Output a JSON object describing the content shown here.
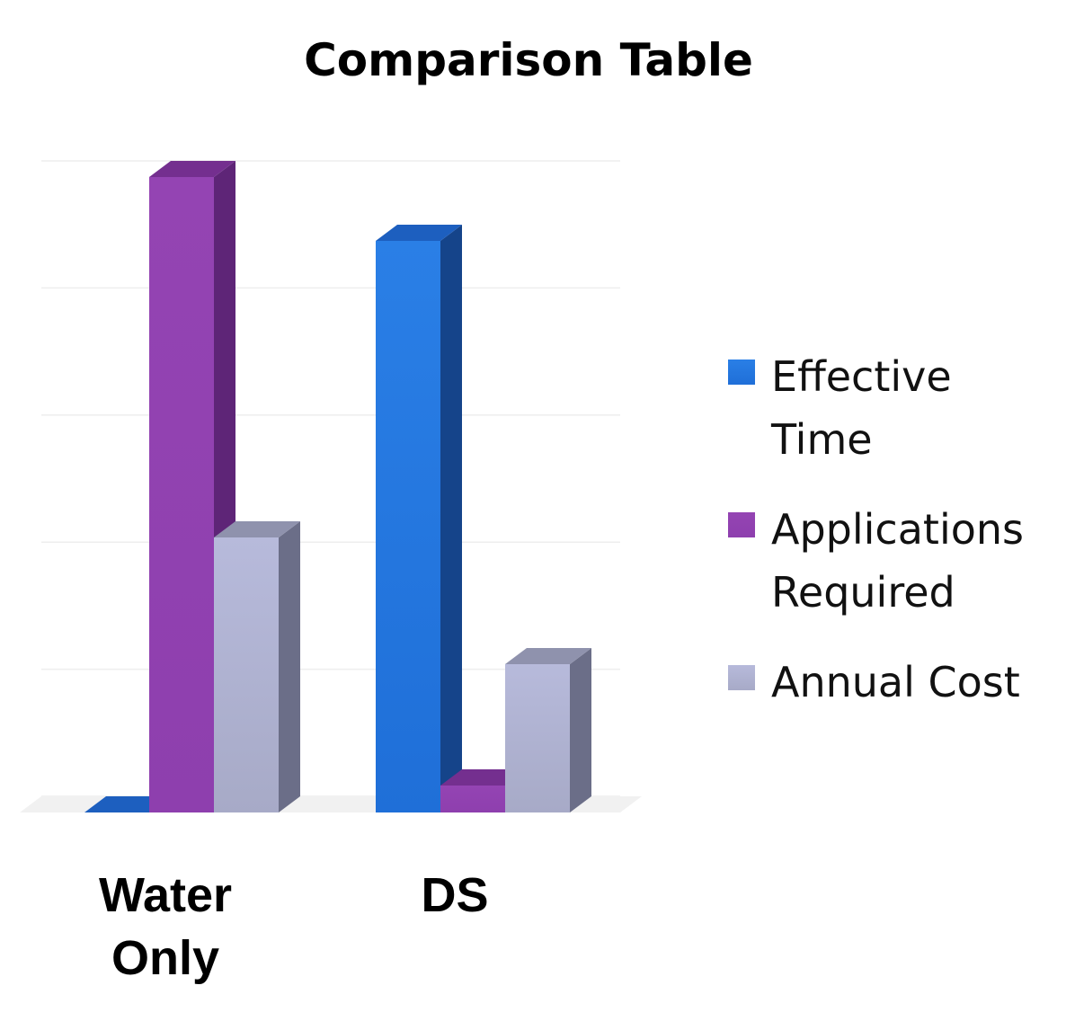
{
  "chart_data": {
    "type": "bar",
    "title": "Comparison Table",
    "categories": [
      [
        "Water",
        "Only"
      ],
      [
        "DS"
      ]
    ],
    "series": [
      {
        "name": [
          "Effective",
          "Time"
        ],
        "values": [
          0,
          636
        ]
      },
      {
        "name": [
          "Applications",
          "Required"
        ],
        "values": [
          707,
          30
        ]
      },
      {
        "name": [
          "Annual Cost"
        ],
        "values": [
          306,
          165
        ]
      }
    ],
    "ylim": [
      0,
      707
    ],
    "grid": true,
    "legend": "right",
    "colors": {
      "series": [
        {
          "front": "#1f6fd8",
          "frontTop": "#2a7fe6",
          "side": "#15448a",
          "top": "#1d5fbf"
        },
        {
          "front": "#8e3fae",
          "frontTop": "#9444b3",
          "side": "#5e2577",
          "top": "#742f8f"
        },
        {
          "front": "#a7aac7",
          "frontTop": "#b7badb",
          "side": "#6b6e88",
          "top": "#8f92ad"
        }
      ]
    }
  }
}
